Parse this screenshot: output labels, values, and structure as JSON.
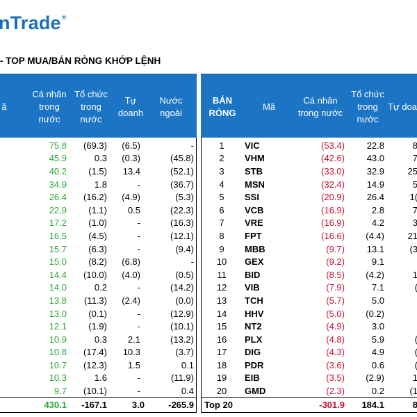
{
  "logo": {
    "text": "nTrade",
    "mark": "®"
  },
  "title": "- TOP MUA/BÁN RÒNG KHỚP LỆNH",
  "left_panel": {
    "headers": {
      "partial_ma": "ã",
      "ca_nhan": [
        "Cá nhân",
        "trong",
        "nước"
      ],
      "to_chuc": [
        "Tổ chức",
        "trong",
        "nước"
      ],
      "tu_doanh": [
        "Tự",
        "doanh"
      ],
      "nuoc_ngoai": [
        "Nước",
        "ngoài"
      ]
    },
    "rows": [
      [
        "75.8",
        "(69.3)",
        "(6.5)",
        "-"
      ],
      [
        "45.9",
        "0.3",
        "(0.3)",
        "(45.8)"
      ],
      [
        "40.2",
        "(1.5)",
        "13.4",
        "(52.1)"
      ],
      [
        "34.9",
        "1.8",
        "-",
        "(36.7)"
      ],
      [
        "26.4",
        "(16.2)",
        "(4.9)",
        "(5.3)"
      ],
      [
        "22.9",
        "(1.1)",
        "0.5",
        "(22.3)"
      ],
      [
        "17.2",
        "(1.0)",
        "-",
        "(16.3)"
      ],
      [
        "16.5",
        "(4.5)",
        "-",
        "(12.1)"
      ],
      [
        "15.7",
        "(6.3)",
        "-",
        "(9.4)"
      ],
      [
        "15.0",
        "(8.2)",
        "(6.8)",
        "-"
      ],
      [
        "14.4",
        "(10.0)",
        "(4.0)",
        "(0.5)"
      ],
      [
        "14.0",
        "0.2",
        "-",
        "(14.2)"
      ],
      [
        "13.8",
        "(11.3)",
        "(2.4)",
        "(0.0)"
      ],
      [
        "13.0",
        "(0.1)",
        "-",
        "(12.9)"
      ],
      [
        "12.1",
        "(1.9)",
        "-",
        "(10.1)"
      ],
      [
        "10.9",
        "0.3",
        "2.1",
        "(13.2)"
      ],
      [
        "10.8",
        "(17.4)",
        "10.3",
        "(3.7)"
      ],
      [
        "10.7",
        "(12.3)",
        "1.5",
        "0.1"
      ],
      [
        "10.3",
        "1.6",
        "-",
        "(11.9)"
      ],
      [
        "9.7",
        "(10.1)",
        "-",
        "0.4"
      ]
    ],
    "total": [
      "430.1",
      "-167.1",
      "3.0",
      "-265.9"
    ]
  },
  "right_panel": {
    "headers": {
      "ban_rong": [
        "BÁN",
        "RÒNG"
      ],
      "ma": "Mã",
      "ca_nhan": [
        "Cá nhân",
        "trong nước"
      ],
      "to_chuc": [
        "Tổ chức",
        "trong",
        "nước"
      ],
      "tu_doanh_partial": "Tự doa"
    },
    "rows": [
      [
        "1",
        "VIC",
        "(53.4)",
        "22.8",
        "8"
      ],
      [
        "2",
        "VHM",
        "(42.6)",
        "43.0",
        "7"
      ],
      [
        "3",
        "STB",
        "(33.0)",
        "32.9",
        "25"
      ],
      [
        "4",
        "MSN",
        "(32.4)",
        "14.9",
        "5"
      ],
      [
        "5",
        "SSI",
        "(20.9)",
        "26.4",
        "1("
      ],
      [
        "6",
        "VCB",
        "(16.9)",
        "2.8",
        "7"
      ],
      [
        "7",
        "VRE",
        "(16.9)",
        "4.2",
        "3"
      ],
      [
        "8",
        "FPT",
        "(16.6)",
        "(4.4)",
        "21"
      ],
      [
        "9",
        "MBB",
        "(9.7)",
        "13.1",
        "(3"
      ],
      [
        "10",
        "GEX",
        "(9.2)",
        "9.1",
        ""
      ],
      [
        "11",
        "BID",
        "(8.5)",
        "(4.2)",
        "1"
      ],
      [
        "12",
        "VIB",
        "(7.9)",
        "7.1",
        "("
      ],
      [
        "13",
        "TCH",
        "(5.7)",
        "5.0",
        ""
      ],
      [
        "14",
        "HHV",
        "(5.0)",
        "(0.2)",
        ""
      ],
      [
        "15",
        "NT2",
        "(4.9)",
        "3.0",
        ""
      ],
      [
        "16",
        "PLX",
        "(4.8)",
        "5.9",
        "("
      ],
      [
        "17",
        "DIG",
        "(4.3)",
        "4.9",
        "("
      ],
      [
        "18",
        "PDR",
        "(3.6)",
        "0.6",
        "("
      ],
      [
        "19",
        "EIB",
        "(3.5)",
        "(2.9)",
        "1"
      ],
      [
        "20",
        "GMD",
        "(2.3)",
        "0.2",
        "(1"
      ]
    ],
    "total": [
      "Top 20",
      "-301.9",
      "184.1",
      "8"
    ]
  }
}
